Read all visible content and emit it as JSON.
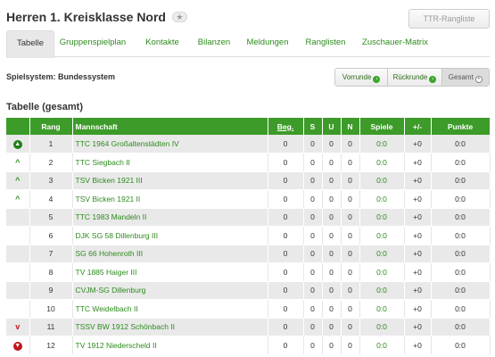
{
  "header": {
    "title": "Herren 1. Kreisklasse Nord",
    "star_glyph": "★",
    "ttr_button": "TTR-Rangliste"
  },
  "tabs": [
    {
      "label": "Tabelle",
      "active": true
    },
    {
      "label": "Gruppenspielplan",
      "active": false
    },
    {
      "label": "Kontakte",
      "active": false
    },
    {
      "label": "Bilanzen",
      "active": false
    },
    {
      "label": "Meldungen",
      "active": false
    },
    {
      "label": "Ranglisten",
      "active": false
    },
    {
      "label": "Zuschauer-Matrix",
      "active": false
    }
  ],
  "spielsystem": "Spielsystem: Bundessystem",
  "rounds": [
    {
      "label": "Vorrunde",
      "active": false
    },
    {
      "label": "Rückrunde",
      "active": false
    },
    {
      "label": "Gesamt",
      "active": true
    }
  ],
  "section_title": "Tabelle (gesamt)",
  "table": {
    "columns": [
      "",
      "Rang",
      "Mannschaft",
      "Beg.",
      "S",
      "U",
      "N",
      "Spiele",
      "+/-",
      "Punkte"
    ],
    "rows": [
      {
        "trend": "up-circle",
        "rang": "1",
        "team": "TTC 1964 Großaltenstädten IV",
        "beg": "0",
        "s": "0",
        "u": "0",
        "n": "0",
        "spiele": "0:0",
        "diff": "+0",
        "punkte": "0:0"
      },
      {
        "trend": "up",
        "rang": "2",
        "team": "TTC Siegbach II",
        "beg": "0",
        "s": "0",
        "u": "0",
        "n": "0",
        "spiele": "0:0",
        "diff": "+0",
        "punkte": "0:0"
      },
      {
        "trend": "up",
        "rang": "3",
        "team": "TSV Bicken 1921 III",
        "beg": "0",
        "s": "0",
        "u": "0",
        "n": "0",
        "spiele": "0:0",
        "diff": "+0",
        "punkte": "0:0"
      },
      {
        "trend": "up",
        "rang": "4",
        "team": "TSV Bicken 1921 II",
        "beg": "0",
        "s": "0",
        "u": "0",
        "n": "0",
        "spiele": "0:0",
        "diff": "+0",
        "punkte": "0:0"
      },
      {
        "trend": "",
        "rang": "5",
        "team": "TTC 1983 Mandeln II",
        "beg": "0",
        "s": "0",
        "u": "0",
        "n": "0",
        "spiele": "0:0",
        "diff": "+0",
        "punkte": "0:0"
      },
      {
        "trend": "",
        "rang": "6",
        "team": "DJK SG 58 Dillenburg III",
        "beg": "0",
        "s": "0",
        "u": "0",
        "n": "0",
        "spiele": "0:0",
        "diff": "+0",
        "punkte": "0:0"
      },
      {
        "trend": "",
        "rang": "7",
        "team": "SG 66 Hohenroth III",
        "beg": "0",
        "s": "0",
        "u": "0",
        "n": "0",
        "spiele": "0:0",
        "diff": "+0",
        "punkte": "0:0"
      },
      {
        "trend": "",
        "rang": "8",
        "team": "TV 1885 Haiger III",
        "beg": "0",
        "s": "0",
        "u": "0",
        "n": "0",
        "spiele": "0:0",
        "diff": "+0",
        "punkte": "0:0"
      },
      {
        "trend": "",
        "rang": "9",
        "team": "CVJM-SG Dillenburg",
        "beg": "0",
        "s": "0",
        "u": "0",
        "n": "0",
        "spiele": "0:0",
        "diff": "+0",
        "punkte": "0:0"
      },
      {
        "trend": "",
        "rang": "10",
        "team": "TTC Weidelbach II",
        "beg": "0",
        "s": "0",
        "u": "0",
        "n": "0",
        "spiele": "0:0",
        "diff": "+0",
        "punkte": "0:0"
      },
      {
        "trend": "down",
        "rang": "11",
        "team": "TSSV BW 1912 Schönbach II",
        "beg": "0",
        "s": "0",
        "u": "0",
        "n": "0",
        "spiele": "0:0",
        "diff": "+0",
        "punkte": "0:0"
      },
      {
        "trend": "down-circle",
        "rang": "12",
        "team": "TV 1912 Niederscheld II",
        "beg": "0",
        "s": "0",
        "u": "0",
        "n": "0",
        "spiele": "0:0",
        "diff": "+0",
        "punkte": "0:0"
      }
    ]
  },
  "colors": {
    "header_green": "#3d9b2a",
    "link_green": "#2e8b1f",
    "down_red": "#c0161c"
  }
}
